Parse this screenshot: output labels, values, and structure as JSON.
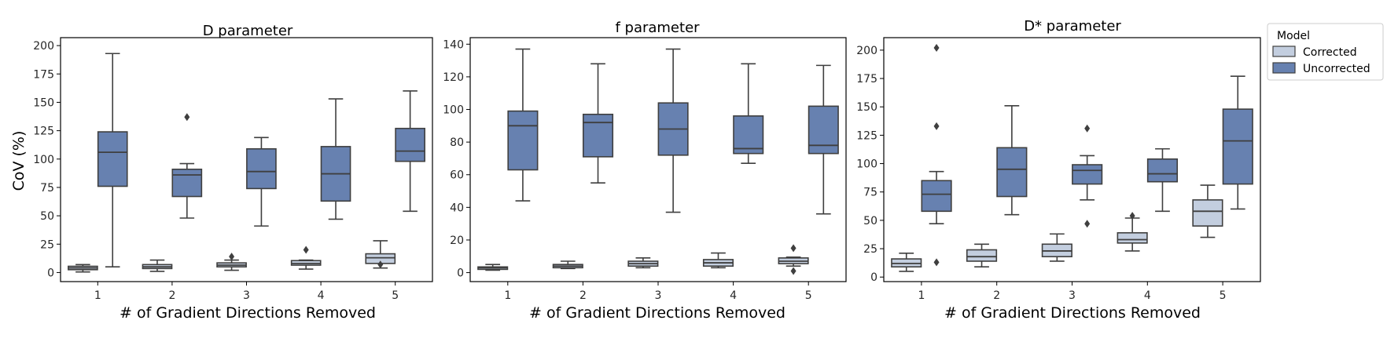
{
  "colors": {
    "corrected": "#c3cedf",
    "uncorrected": "#6781b0",
    "edge": "#3f3f3f"
  },
  "legend": {
    "title": "Model",
    "entries": [
      {
        "key": "corrected",
        "label": "Corrected"
      },
      {
        "key": "uncorrected",
        "label": "Uncorrected"
      }
    ],
    "position": "outside-right"
  },
  "chart_data": [
    {
      "type": "box",
      "title": "D parameter",
      "xlabel": "# of Gradient Directions Removed",
      "ylabel": "CoV (%)",
      "categories": [
        "1",
        "2",
        "3",
        "4",
        "5"
      ],
      "ylim": [
        -8,
        207
      ],
      "yticks": [
        0,
        25,
        50,
        75,
        100,
        125,
        150,
        175,
        200
      ],
      "series": [
        {
          "name": "Corrected",
          "key": "corrected",
          "boxes": [
            {
              "min": 0.5,
              "q1": 2.5,
              "median": 4,
              "q3": 5.5,
              "max": 7,
              "fliers": []
            },
            {
              "min": 1,
              "q1": 3.5,
              "median": 5,
              "q3": 7,
              "max": 11,
              "fliers": []
            },
            {
              "min": 2,
              "q1": 5,
              "median": 6.5,
              "q3": 8.5,
              "max": 11,
              "fliers": [
                14
              ]
            },
            {
              "min": 3,
              "q1": 6.5,
              "median": 8,
              "q3": 10.5,
              "max": 11,
              "fliers": [
                20
              ]
            },
            {
              "min": 4,
              "q1": 8,
              "median": 13,
              "q3": 16.5,
              "max": 28,
              "fliers": [
                7
              ]
            }
          ]
        },
        {
          "name": "Uncorrected",
          "key": "uncorrected",
          "boxes": [
            {
              "min": 5,
              "q1": 76,
              "median": 106,
              "q3": 124,
              "max": 193,
              "fliers": []
            },
            {
              "min": 48,
              "q1": 67,
              "median": 86,
              "q3": 91,
              "max": 96,
              "fliers": [
                137
              ]
            },
            {
              "min": 41,
              "q1": 74,
              "median": 89,
              "q3": 109,
              "max": 119,
              "fliers": []
            },
            {
              "min": 47,
              "q1": 63,
              "median": 87,
              "q3": 111,
              "max": 153,
              "fliers": []
            },
            {
              "min": 54,
              "q1": 98,
              "median": 107,
              "q3": 127,
              "max": 160,
              "fliers": []
            }
          ]
        }
      ]
    },
    {
      "type": "box",
      "title": "f parameter",
      "xlabel": "# of Gradient Directions Removed",
      "ylabel": "",
      "categories": [
        "1",
        "2",
        "3",
        "4",
        "5"
      ],
      "ylim": [
        -5.5,
        144
      ],
      "yticks": [
        0,
        20,
        40,
        60,
        80,
        100,
        120,
        140
      ],
      "series": [
        {
          "name": "Corrected",
          "key": "corrected",
          "boxes": [
            {
              "min": 1.5,
              "q1": 2,
              "median": 3,
              "q3": 3.5,
              "max": 5,
              "fliers": []
            },
            {
              "min": 2.5,
              "q1": 3,
              "median": 4,
              "q3": 5,
              "max": 7,
              "fliers": []
            },
            {
              "min": 3,
              "q1": 4,
              "median": 5.5,
              "q3": 7,
              "max": 9,
              "fliers": []
            },
            {
              "min": 3,
              "q1": 4,
              "median": 6,
              "q3": 8,
              "max": 12,
              "fliers": []
            },
            {
              "min": 4,
              "q1": 5.5,
              "median": 7,
              "q3": 9,
              "max": 9.5,
              "fliers": [
                15,
                1
              ]
            }
          ]
        },
        {
          "name": "Uncorrected",
          "key": "uncorrected",
          "boxes": [
            {
              "min": 44,
              "q1": 63,
              "median": 90,
              "q3": 99,
              "max": 137,
              "fliers": []
            },
            {
              "min": 55,
              "q1": 71,
              "median": 92,
              "q3": 97,
              "max": 128,
              "fliers": []
            },
            {
              "min": 37,
              "q1": 72,
              "median": 88,
              "q3": 104,
              "max": 137,
              "fliers": []
            },
            {
              "min": 67,
              "q1": 73,
              "median": 76,
              "q3": 96,
              "max": 128,
              "fliers": []
            },
            {
              "min": 36,
              "q1": 73,
              "median": 78,
              "q3": 102,
              "max": 127,
              "fliers": []
            }
          ]
        }
      ]
    },
    {
      "type": "box",
      "title": "D* parameter",
      "xlabel": "# of Gradient Directions Removed",
      "ylabel": "",
      "categories": [
        "1",
        "2",
        "3",
        "4",
        "5"
      ],
      "ylim": [
        -4,
        211
      ],
      "yticks": [
        0,
        25,
        50,
        75,
        100,
        125,
        150,
        175,
        200
      ],
      "series": [
        {
          "name": "Corrected",
          "key": "corrected",
          "boxes": [
            {
              "min": 5,
              "q1": 9,
              "median": 12,
              "q3": 16,
              "max": 21,
              "fliers": []
            },
            {
              "min": 9,
              "q1": 14,
              "median": 18,
              "q3": 24,
              "max": 29,
              "fliers": []
            },
            {
              "min": 14,
              "q1": 18,
              "median": 23,
              "q3": 29,
              "max": 38,
              "fliers": []
            },
            {
              "min": 23,
              "q1": 30,
              "median": 33,
              "q3": 39,
              "max": 52,
              "fliers": [
                54
              ]
            },
            {
              "min": 35,
              "q1": 45,
              "median": 58,
              "q3": 68,
              "max": 81,
              "fliers": []
            }
          ]
        },
        {
          "name": "Uncorrected",
          "key": "uncorrected",
          "boxes": [
            {
              "min": 47,
              "q1": 58,
              "median": 73,
              "q3": 85,
              "max": 93,
              "fliers": [
                202,
                133,
                13
              ]
            },
            {
              "min": 55,
              "q1": 71,
              "median": 95,
              "q3": 114,
              "max": 151,
              "fliers": []
            },
            {
              "min": 68,
              "q1": 82,
              "median": 94,
              "q3": 99,
              "max": 107,
              "fliers": [
                131,
                47
              ]
            },
            {
              "min": 58,
              "q1": 84,
              "median": 91,
              "q3": 104,
              "max": 113,
              "fliers": []
            },
            {
              "min": 60,
              "q1": 82,
              "median": 120,
              "q3": 148,
              "max": 177,
              "fliers": []
            }
          ]
        }
      ]
    }
  ]
}
